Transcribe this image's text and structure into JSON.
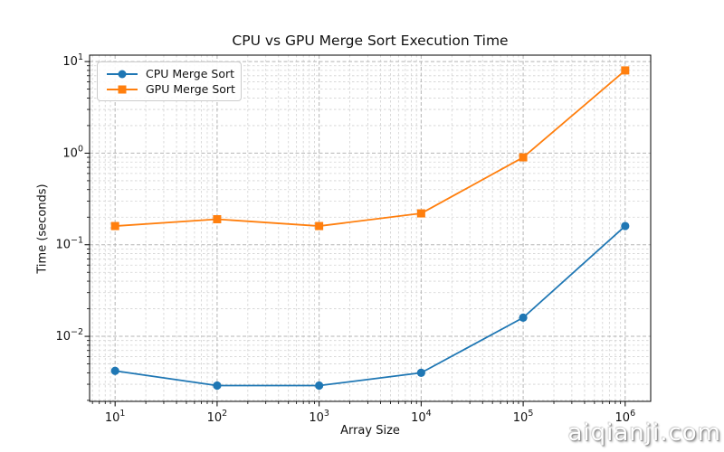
{
  "figure": {
    "title": "CPU vs GPU Merge Sort Execution Time",
    "xlabel": "Array Size",
    "ylabel": "Time (seconds)",
    "watermark": "aiqianji.com"
  },
  "legend": {
    "items": [
      {
        "label": "CPU Merge Sort"
      },
      {
        "label": "GPU Merge Sort"
      }
    ]
  },
  "chart_data": {
    "type": "line",
    "title": "CPU vs GPU Merge Sort Execution Time",
    "xlabel": "Array Size",
    "ylabel": "Time (seconds)",
    "xscale": "log",
    "yscale": "log",
    "x": [
      10,
      100,
      1000,
      10000,
      100000,
      1000000
    ],
    "series": [
      {
        "name": "CPU Merge Sort",
        "values": [
          0.0042,
          0.0029,
          0.0029,
          0.004,
          0.016,
          0.16
        ],
        "color": "#1f77b4",
        "marker": "circle"
      },
      {
        "name": "GPU Merge Sort",
        "values": [
          0.16,
          0.19,
          0.16,
          0.22,
          0.9,
          8.0
        ],
        "color": "#ff7f0e",
        "marker": "square"
      }
    ],
    "xlim_log": [
      0.75,
      6.25
    ],
    "ylim_log": [
      -2.71,
      1.07
    ],
    "x_tick_exponents": [
      1,
      2,
      3,
      4,
      5,
      6
    ],
    "y_tick_exponents": [
      1,
      0,
      -1,
      -2
    ],
    "grid": {
      "which": "both",
      "style": "dashed",
      "major_color": "#b5b5b5",
      "minor_color": "#d2d2d2"
    },
    "legend_position": "upper left",
    "spine_color": "#000000"
  }
}
